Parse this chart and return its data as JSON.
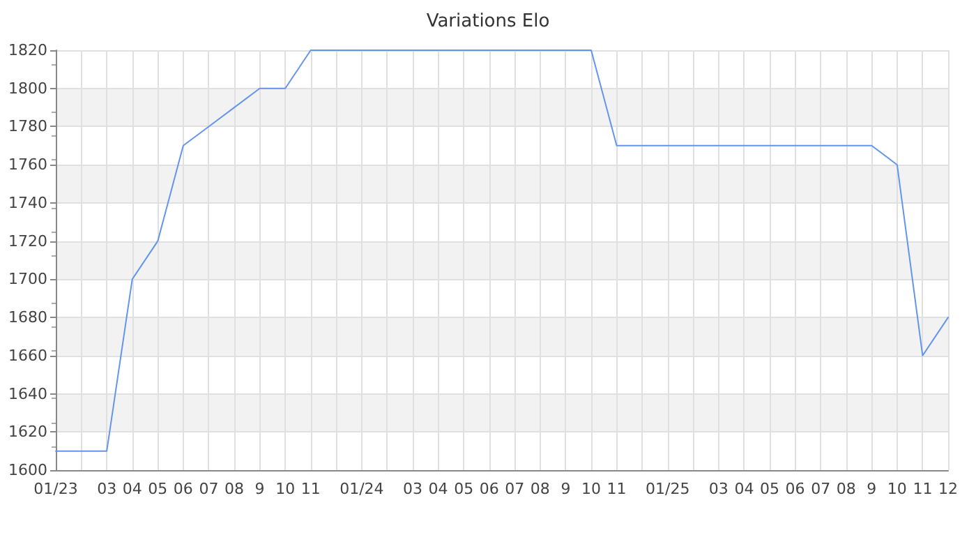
{
  "chart_data": {
    "type": "line",
    "title": "Variations Elo",
    "categories": [
      "01/23",
      null,
      "03",
      "04",
      "05",
      "06",
      "07",
      "08",
      "9",
      "10",
      "11",
      null,
      "01/24",
      null,
      "03",
      "04",
      "05",
      "06",
      "07",
      "08",
      "9",
      "10",
      "11",
      null,
      "01/25",
      null,
      "03",
      "04",
      "05",
      "06",
      "07",
      "08",
      "9",
      "10",
      "11",
      "12"
    ],
    "values": [
      1610,
      1610,
      1610,
      1700,
      1720,
      1770,
      1780,
      1790,
      1800,
      1800,
      1820,
      1820,
      1820,
      1820,
      1820,
      1820,
      1820,
      1820,
      1820,
      1820,
      1820,
      1820,
      1770,
      1770,
      1770,
      1770,
      1770,
      1770,
      1770,
      1770,
      1770,
      1770,
      1770,
      1760,
      1660,
      1680
    ],
    "color": "#6495ed",
    "marker": "none",
    "ylim": [
      1600,
      1820
    ],
    "yticks": [
      1600,
      1620,
      1640,
      1660,
      1680,
      1700,
      1720,
      1740,
      1760,
      1780,
      1800,
      1820
    ],
    "grid": true
  }
}
